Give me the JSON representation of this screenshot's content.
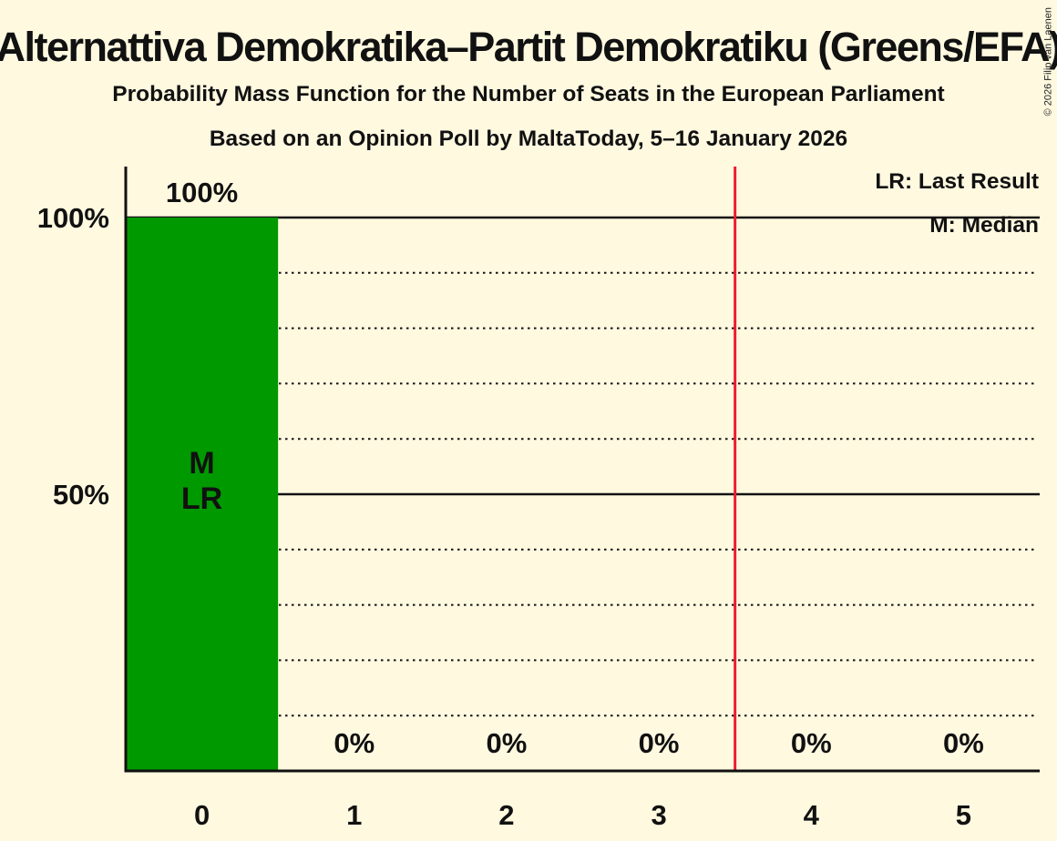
{
  "title": "Alternattiva Demokratika–Partit Demokratiku (Greens/EFA)",
  "subtitle": "Probability Mass Function for the Number of Seats in the European Parliament",
  "poll_line": "Based on an Opinion Poll by MaltaToday, 5–16 January 2026",
  "copyright": "© 2026 Filip van Laenen",
  "legend": {
    "last_result": "LR: Last Result",
    "median": "M: Median"
  },
  "colors": {
    "background": "#FFF9E0",
    "bar": "#009900",
    "majority_line": "#ED1B2E",
    "ink": "#111111",
    "bar_text": "#FFF9E0"
  },
  "chart_data": {
    "type": "bar",
    "categories": [
      "0",
      "1",
      "2",
      "3",
      "4",
      "5"
    ],
    "values": [
      100,
      0,
      0,
      0,
      0,
      0
    ],
    "value_labels": [
      "100%",
      "0%",
      "0%",
      "0%",
      "0%",
      "0%"
    ],
    "xlabel": "",
    "ylabel": "",
    "ylim": [
      0,
      100
    ],
    "y_ticks": [
      {
        "value": 100,
        "label": "100%"
      },
      {
        "value": 50,
        "label": "50%"
      }
    ],
    "solid_gridlines": [
      100,
      50
    ],
    "dotted_gridlines": [
      90,
      80,
      70,
      60,
      40,
      30,
      20,
      10
    ],
    "majority_line_x": 3.5,
    "annotation": {
      "category_index": 0,
      "lines": [
        "M",
        "LR"
      ]
    },
    "legend_position": "top-right",
    "grid": true
  }
}
